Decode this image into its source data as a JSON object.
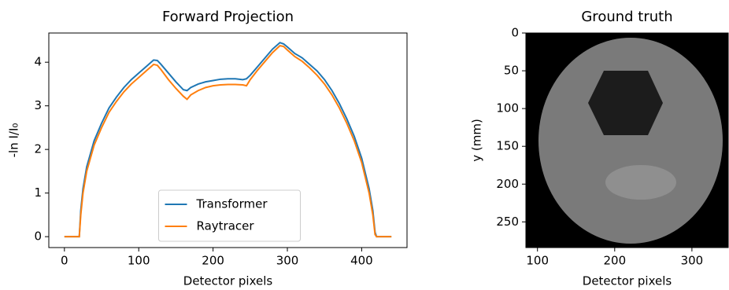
{
  "chart_data": [
    {
      "type": "line",
      "title": "Forward Projection",
      "xlabel": "Detector pixels",
      "ylabel": "-ln I/I₀",
      "x": [
        0,
        10,
        20,
        22,
        25,
        30,
        40,
        50,
        60,
        70,
        80,
        90,
        100,
        110,
        120,
        125,
        130,
        140,
        150,
        160,
        165,
        170,
        180,
        190,
        200,
        210,
        220,
        230,
        240,
        245,
        250,
        260,
        270,
        280,
        290,
        295,
        300,
        310,
        320,
        330,
        340,
        350,
        360,
        370,
        380,
        390,
        400,
        410,
        415,
        418,
        420,
        430,
        440
      ],
      "series": [
        {
          "name": "Transformer",
          "color": "#1f77b4",
          "values": [
            0,
            0,
            0,
            0.6,
            1.1,
            1.6,
            2.2,
            2.6,
            2.95,
            3.2,
            3.42,
            3.6,
            3.75,
            3.9,
            4.05,
            4.04,
            3.95,
            3.75,
            3.55,
            3.37,
            3.35,
            3.42,
            3.5,
            3.55,
            3.58,
            3.61,
            3.62,
            3.62,
            3.6,
            3.62,
            3.7,
            3.9,
            4.1,
            4.3,
            4.45,
            4.42,
            4.35,
            4.2,
            4.1,
            3.95,
            3.8,
            3.6,
            3.35,
            3.05,
            2.7,
            2.3,
            1.8,
            1.1,
            0.6,
            0.1,
            0,
            0,
            0
          ]
        },
        {
          "name": "Raytracer",
          "color": "#ff7f0e",
          "values": [
            0,
            0,
            0,
            0.5,
            1.0,
            1.5,
            2.1,
            2.5,
            2.85,
            3.1,
            3.32,
            3.5,
            3.65,
            3.8,
            3.95,
            3.93,
            3.83,
            3.6,
            3.4,
            3.22,
            3.15,
            3.25,
            3.35,
            3.42,
            3.46,
            3.48,
            3.49,
            3.49,
            3.48,
            3.46,
            3.6,
            3.82,
            4.02,
            4.22,
            4.38,
            4.36,
            4.28,
            4.13,
            4.02,
            3.87,
            3.7,
            3.5,
            3.25,
            2.95,
            2.6,
            2.2,
            1.7,
            1.0,
            0.5,
            0.05,
            0,
            0,
            0
          ]
        }
      ],
      "xlim": [
        -21,
        461
      ],
      "ylim": [
        -0.25,
        4.67
      ],
      "xticks": [
        0,
        100,
        200,
        300,
        400
      ],
      "yticks": [
        0,
        1,
        2,
        3,
        4
      ],
      "legend": "lower center"
    },
    {
      "type": "image",
      "title": "Ground truth",
      "xlabel": "Detector pixels",
      "ylabel": "y (mm)",
      "xlim": [
        85,
        347
      ],
      "ylim": [
        284,
        0
      ],
      "xticks": [
        100,
        200,
        300
      ],
      "yticks": [
        0,
        50,
        100,
        150,
        200,
        250
      ]
    }
  ]
}
